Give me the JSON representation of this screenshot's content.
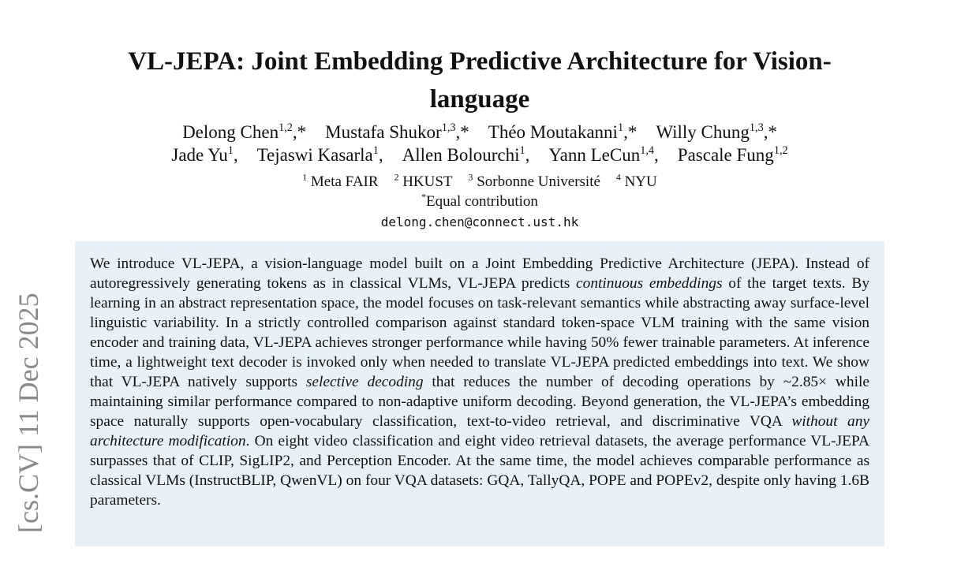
{
  "sidebar": {
    "arxiv_stamp": "[cs.CV]  11 Dec 2025"
  },
  "paper": {
    "title": "VL-JEPA: Joint Embedding Predictive Architecture for Vision-language",
    "authors_line1": [
      {
        "name": "Delong Chen",
        "sup": "1,2",
        "mark": ",*"
      },
      {
        "name": "Mustafa Shukor",
        "sup": "1,3",
        "mark": ",*"
      },
      {
        "name": "Théo Moutakanni",
        "sup": "1",
        "mark": ",*"
      },
      {
        "name": "Willy Chung",
        "sup": "1,3",
        "mark": ",*"
      }
    ],
    "authors_line2": [
      {
        "name": "Jade Yu",
        "sup": "1",
        "mark": ","
      },
      {
        "name": "Tejaswi Kasarla",
        "sup": "1",
        "mark": ","
      },
      {
        "name": "Allen Bolourchi",
        "sup": "1",
        "mark": ","
      },
      {
        "name": "Yann LeCun",
        "sup": "1,4",
        "mark": ","
      },
      {
        "name": "Pascale Fung",
        "sup": "1,2",
        "mark": ""
      }
    ],
    "affiliations": [
      {
        "sup": "1",
        "name": "Meta FAIR"
      },
      {
        "sup": "2",
        "name": "HKUST"
      },
      {
        "sup": "3",
        "name": "Sorbonne Université"
      },
      {
        "sup": "4",
        "name": "NYU"
      }
    ],
    "equal_contribution": {
      "sup": "*",
      "text": "Equal contribution"
    },
    "email": "delong.chen@connect.ust.hk",
    "abstract": [
      {
        "t": "We introduce VL-JEPA, a vision-language model built on a Joint Embedding Predictive Architecture (JEPA). Instead of autoregressively generating tokens as in classical VLMs, VL-JEPA predicts "
      },
      {
        "t": "continuous embeddings",
        "i": true
      },
      {
        "t": " of the target texts. By learning in an abstract representation space, the model focuses on task-relevant semantics while abstracting away surface-level linguistic variability. In a strictly controlled comparison against standard token-space VLM training with the same vision encoder and training data, VL-JEPA achieves stronger performance while having 50% fewer trainable parameters. At inference time, a lightweight text decoder is invoked only when needed to translate VL-JEPA predicted embeddings into text. We show that VL-JEPA natively supports "
      },
      {
        "t": "selective decoding",
        "i": true
      },
      {
        "t": " that reduces the number of decoding operations by ~2.85× while maintaining similar performance compared to non-adaptive uniform decoding. Beyond generation, the VL-JEPA’s embedding space naturally supports open-vocabulary classification, text-to-video retrieval, and discriminative VQA "
      },
      {
        "t": "without any architecture modification",
        "i": true
      },
      {
        "t": ". On eight video classification and eight video retrieval datasets, the average performance VL-JEPA surpasses that of CLIP, SigLIP2, and Perception Encoder. At the same time, the model achieves comparable performance as classical VLMs (InstructBLIP, QwenVL) on four VQA datasets: GQA, TallyQA, POPE and POPEv2, despite only having 1.6B parameters."
      }
    ]
  }
}
